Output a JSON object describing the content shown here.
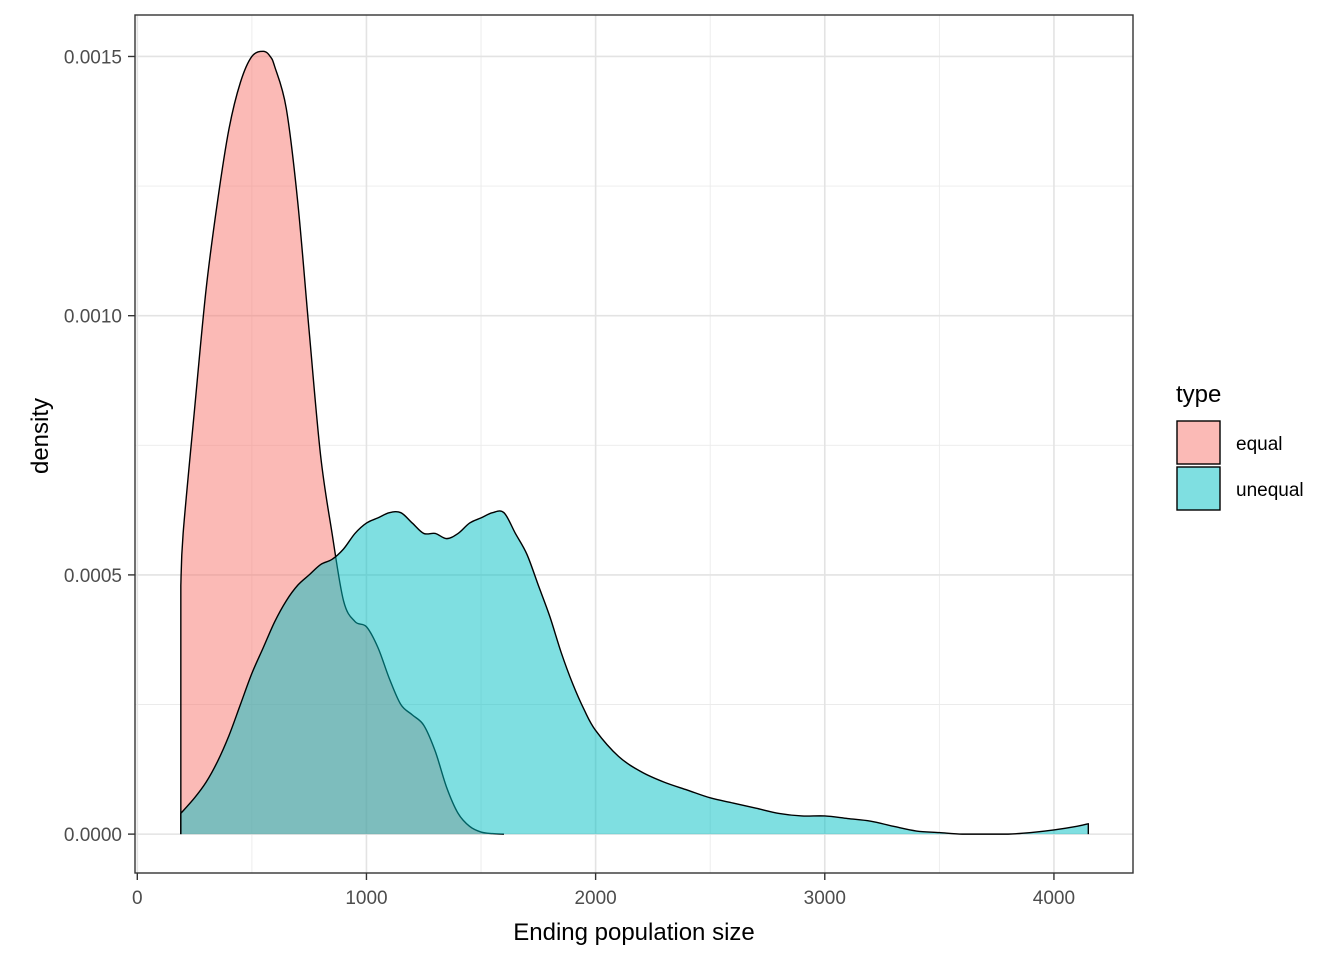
{
  "chart_data": {
    "type": "area",
    "subtype": "density",
    "title": "",
    "xlabel": "Ending population size",
    "ylabel": "density",
    "xlim": [
      -10,
      4345
    ],
    "ylim": [
      -7.5e-05,
      0.00158
    ],
    "x_ticks": [
      0,
      1000,
      2000,
      3000,
      4000
    ],
    "x_tick_labels": [
      "0",
      "1000",
      "2000",
      "3000",
      "4000"
    ],
    "x_minor_ticks": [
      500,
      1500,
      2500,
      3500
    ],
    "y_ticks": [
      0,
      0.0005,
      0.001,
      0.0015
    ],
    "y_tick_labels": [
      "0.0000",
      "0.0005",
      "0.0010",
      "0.0015"
    ],
    "y_minor_ticks": [
      0.00025,
      0.00075,
      0.00125
    ],
    "grid": true,
    "legend": {
      "title": "type",
      "position": "right"
    },
    "fill_opacity": 0.5,
    "series": [
      {
        "name": "equal",
        "color": "#F8766D",
        "x": [
          190,
          200,
          250,
          300,
          350,
          400,
          450,
          500,
          550,
          580,
          600,
          650,
          700,
          750,
          800,
          850,
          900,
          950,
          1000,
          1050,
          1100,
          1150,
          1200,
          1250,
          1300,
          1350,
          1400,
          1450,
          1500,
          1550,
          1600
        ],
        "y": [
          0.00048,
          0.00058,
          0.00082,
          0.00105,
          0.00122,
          0.00136,
          0.00145,
          0.0015,
          0.00151,
          0.0015,
          0.00148,
          0.0014,
          0.00122,
          0.00097,
          0.00073,
          0.00058,
          0.00045,
          0.00041,
          0.0004,
          0.00036,
          0.0003,
          0.00025,
          0.00023,
          0.00021,
          0.00016,
          9e-05,
          4e-05,
          1.5e-05,
          4e-06,
          1e-06,
          0.0
        ]
      },
      {
        "name": "unequal",
        "color": "#00BFC4",
        "x": [
          190,
          250,
          300,
          350,
          400,
          450,
          500,
          550,
          600,
          650,
          700,
          750,
          800,
          850,
          900,
          950,
          1000,
          1050,
          1100,
          1150,
          1200,
          1250,
          1300,
          1350,
          1400,
          1450,
          1500,
          1550,
          1600,
          1650,
          1700,
          1750,
          1800,
          1850,
          1900,
          1950,
          2000,
          2100,
          2200,
          2300,
          2400,
          2500,
          2600,
          2700,
          2800,
          2900,
          3000,
          3100,
          3200,
          3300,
          3400,
          3500,
          3600,
          3700,
          3800,
          3900,
          4000,
          4100,
          4150
        ],
        "y": [
          4e-05,
          7e-05,
          0.0001,
          0.00014,
          0.00019,
          0.00025,
          0.00031,
          0.00036,
          0.00041,
          0.00045,
          0.00048,
          0.0005,
          0.00052,
          0.00053,
          0.00055,
          0.00058,
          0.0006,
          0.00061,
          0.00062,
          0.00062,
          0.0006,
          0.00058,
          0.00058,
          0.00057,
          0.00058,
          0.0006,
          0.00061,
          0.00062,
          0.00062,
          0.00058,
          0.00054,
          0.00048,
          0.00042,
          0.00035,
          0.00029,
          0.00024,
          0.0002,
          0.00015,
          0.00012,
          0.0001,
          8.5e-05,
          7e-05,
          6e-05,
          5e-05,
          4e-05,
          3.5e-05,
          3.5e-05,
          3e-05,
          2.5e-05,
          1.5e-05,
          6e-06,
          3e-06,
          0.0,
          0.0,
          0.0,
          3e-06,
          8e-06,
          1.5e-05,
          2e-05
        ]
      }
    ]
  }
}
